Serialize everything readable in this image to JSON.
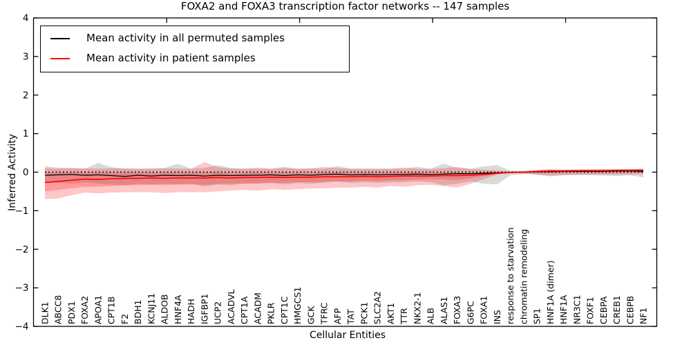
{
  "chart_data": {
    "type": "line",
    "title": "FOXA2 and FOXA3 transcription factor networks -- 147 samples",
    "xlabel": "Cellular Entities",
    "ylabel": "Inferred Activity",
    "ylim": [
      -4,
      4
    ],
    "yticks": [
      4,
      3,
      2,
      1,
      0,
      -1,
      -2,
      -3,
      -4
    ],
    "ytick_labels": [
      "4",
      "3",
      "2",
      "1",
      "0",
      "−1",
      "−2",
      "−3",
      "−4"
    ],
    "grid": false,
    "legend_position": "upper left",
    "zero_reference_line": true,
    "top_tick_category_numbers": [
      10,
      20,
      30,
      40
    ],
    "colors": {
      "permuted_line": "#000000",
      "patient_line": "#ff0000",
      "permuted_band_fill": "rgba(0,0,0,0.15)",
      "patient_band_fill": "rgba(255,0,0,0.22)",
      "zero_line": "#000000",
      "spine": "#000000"
    },
    "categories": [
      "DLK1",
      "ABCC8",
      "PDX1",
      "FOXA2",
      "APOA1",
      "CPT1B",
      "F2",
      "BDH1",
      "KCNJ11",
      "ALDOB",
      "HNF4A",
      "HADH",
      "IGFBP1",
      "UCP2",
      "ACADVL",
      "CPT1A",
      "ACADM",
      "PKLR",
      "CPT1C",
      "HMGCS1",
      "GCK",
      "TFRC",
      "AFP",
      "TAT",
      "PCK1",
      "SLC2A2",
      "AKT1",
      "TTR",
      "NKX2-1",
      "ALB",
      "ALAS1",
      "FOXA3",
      "G6PC",
      "FOXA1",
      "INS",
      "response to starvation",
      "chromatin remodeling",
      "SP1",
      "HNF1A (dimer)",
      "HNF1A",
      "NR3C1",
      "FOXF1",
      "CEBPA",
      "CREB1",
      "CEBPB",
      "NF1"
    ],
    "series": [
      {
        "name": "Mean activity in all permuted samples",
        "color": "#000000",
        "values": [
          -0.08,
          -0.07,
          -0.06,
          -0.08,
          -0.07,
          -0.09,
          -0.11,
          -0.08,
          -0.1,
          -0.08,
          -0.09,
          -0.08,
          -0.1,
          -0.08,
          -0.09,
          -0.08,
          -0.08,
          -0.07,
          -0.09,
          -0.07,
          -0.08,
          -0.06,
          -0.05,
          -0.07,
          -0.06,
          -0.07,
          -0.06,
          -0.06,
          -0.05,
          -0.06,
          -0.05,
          -0.04,
          -0.04,
          -0.03,
          -0.02,
          -0.01,
          0.0,
          0.01,
          0.01,
          0.02,
          0.02,
          0.02,
          0.02,
          0.03,
          0.03,
          0.02
        ],
        "band_upper": [
          0.1,
          0.09,
          0.11,
          0.09,
          0.24,
          0.13,
          0.09,
          0.09,
          0.1,
          0.11,
          0.22,
          0.09,
          0.11,
          0.18,
          0.11,
          0.09,
          0.09,
          0.09,
          0.14,
          0.09,
          0.1,
          0.09,
          0.16,
          0.09,
          0.09,
          0.09,
          0.09,
          0.09,
          0.14,
          0.09,
          0.22,
          0.11,
          0.09,
          0.15,
          0.18,
          0.04,
          0.03,
          0.04,
          0.06,
          0.05,
          0.05,
          0.06,
          0.05,
          0.06,
          0.06,
          0.1
        ],
        "band_lower": [
          -0.28,
          -0.27,
          -0.3,
          -0.27,
          -0.3,
          -0.32,
          -0.34,
          -0.3,
          -0.32,
          -0.3,
          -0.32,
          -0.3,
          -0.37,
          -0.32,
          -0.34,
          -0.3,
          -0.3,
          -0.28,
          -0.32,
          -0.28,
          -0.3,
          -0.27,
          -0.24,
          -0.28,
          -0.26,
          -0.28,
          -0.26,
          -0.26,
          -0.24,
          -0.26,
          -0.34,
          -0.3,
          -0.24,
          -0.3,
          -0.32,
          -0.08,
          -0.05,
          -0.06,
          -0.11,
          -0.08,
          -0.08,
          -0.08,
          -0.09,
          -0.1,
          -0.08,
          -0.14
        ]
      },
      {
        "name": "Mean activity in patient samples",
        "color": "#ff0000",
        "values": [
          -0.27,
          -0.24,
          -0.21,
          -0.18,
          -0.19,
          -0.17,
          -0.16,
          -0.16,
          -0.15,
          -0.16,
          -0.15,
          -0.15,
          -0.15,
          -0.14,
          -0.15,
          -0.14,
          -0.14,
          -0.13,
          -0.14,
          -0.13,
          -0.13,
          -0.12,
          -0.12,
          -0.12,
          -0.11,
          -0.12,
          -0.11,
          -0.1,
          -0.1,
          -0.1,
          -0.09,
          -0.09,
          -0.08,
          -0.06,
          -0.03,
          -0.01,
          0.0,
          0.02,
          0.03,
          0.03,
          0.04,
          0.04,
          0.04,
          0.05,
          0.05,
          0.05
        ],
        "band_upper": [
          0.15,
          0.12,
          0.1,
          0.1,
          0.09,
          0.1,
          0.1,
          0.09,
          0.09,
          0.1,
          0.09,
          0.09,
          0.26,
          0.13,
          0.09,
          0.09,
          0.12,
          0.09,
          0.1,
          0.09,
          0.09,
          0.14,
          0.1,
          0.09,
          0.09,
          0.09,
          0.09,
          0.12,
          0.09,
          0.08,
          0.1,
          0.14,
          0.08,
          0.06,
          0.04,
          0.02,
          0.03,
          0.06,
          0.08,
          0.07,
          0.07,
          0.08,
          0.08,
          0.07,
          0.08,
          0.08
        ],
        "band_lower": [
          -0.7,
          -0.68,
          -0.6,
          -0.53,
          -0.55,
          -0.53,
          -0.52,
          -0.52,
          -0.52,
          -0.54,
          -0.52,
          -0.52,
          -0.52,
          -0.5,
          -0.48,
          -0.46,
          -0.48,
          -0.44,
          -0.46,
          -0.44,
          -0.42,
          -0.42,
          -0.4,
          -0.4,
          -0.38,
          -0.4,
          -0.36,
          -0.38,
          -0.34,
          -0.33,
          -0.36,
          -0.4,
          -0.3,
          -0.18,
          -0.06,
          -0.02,
          -0.03,
          -0.07,
          -0.09,
          -0.07,
          -0.06,
          -0.06,
          -0.06,
          -0.06,
          -0.06,
          -0.05
        ],
        "band_inner_upper": [
          -0.02,
          -0.02,
          -0.02,
          -0.02,
          -0.02,
          -0.02,
          -0.02,
          -0.02,
          -0.02,
          -0.02,
          -0.02,
          -0.02,
          -0.01,
          -0.02,
          -0.03,
          -0.03,
          -0.02,
          -0.03,
          -0.02,
          -0.03,
          -0.03,
          -0.02,
          -0.03,
          -0.03,
          -0.03,
          -0.03,
          -0.03,
          -0.02,
          -0.03,
          -0.04,
          -0.03,
          -0.02,
          -0.03,
          -0.02,
          0.0,
          0.0,
          0.01,
          0.04,
          0.06,
          0.06,
          0.06,
          0.06,
          0.07,
          0.07,
          0.07,
          0.07
        ],
        "band_inner_lower": [
          -0.5,
          -0.46,
          -0.42,
          -0.38,
          -0.38,
          -0.36,
          -0.34,
          -0.34,
          -0.33,
          -0.34,
          -0.32,
          -0.32,
          -0.33,
          -0.31,
          -0.3,
          -0.29,
          -0.29,
          -0.27,
          -0.28,
          -0.26,
          -0.26,
          -0.25,
          -0.24,
          -0.24,
          -0.22,
          -0.23,
          -0.21,
          -0.21,
          -0.19,
          -0.18,
          -0.19,
          -0.2,
          -0.16,
          -0.1,
          -0.05,
          -0.02,
          -0.02,
          0.0,
          0.01,
          0.01,
          0.02,
          0.02,
          0.02,
          0.03,
          0.03,
          0.03
        ]
      }
    ]
  }
}
